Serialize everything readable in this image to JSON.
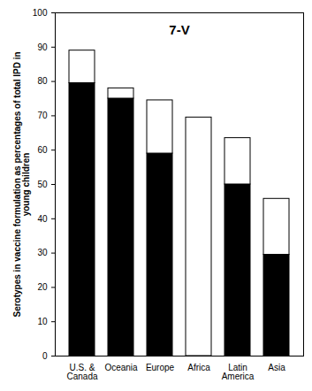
{
  "chart_data": {
    "type": "bar",
    "title": "7-V",
    "ylabel": "Serotypes in vaccine formulation as percentages of total IPD in young children",
    "categories": [
      "U.S. & Canada",
      "Oceania",
      "Europe",
      "Africa",
      "Latin America",
      "Asia"
    ],
    "series": [
      {
        "color": "#000000",
        "values": [
          79.5,
          75,
          59,
          0,
          50,
          29.5
        ]
      },
      {
        "color": "#ffffff",
        "values": [
          9.5,
          3,
          15.5,
          69.5,
          13.5,
          16.3
        ]
      }
    ],
    "stacked": true,
    "ylim": [
      0,
      100
    ],
    "yticks": [
      0,
      10,
      20,
      30,
      40,
      50,
      60,
      70,
      80,
      90,
      100
    ],
    "grid": false
  }
}
